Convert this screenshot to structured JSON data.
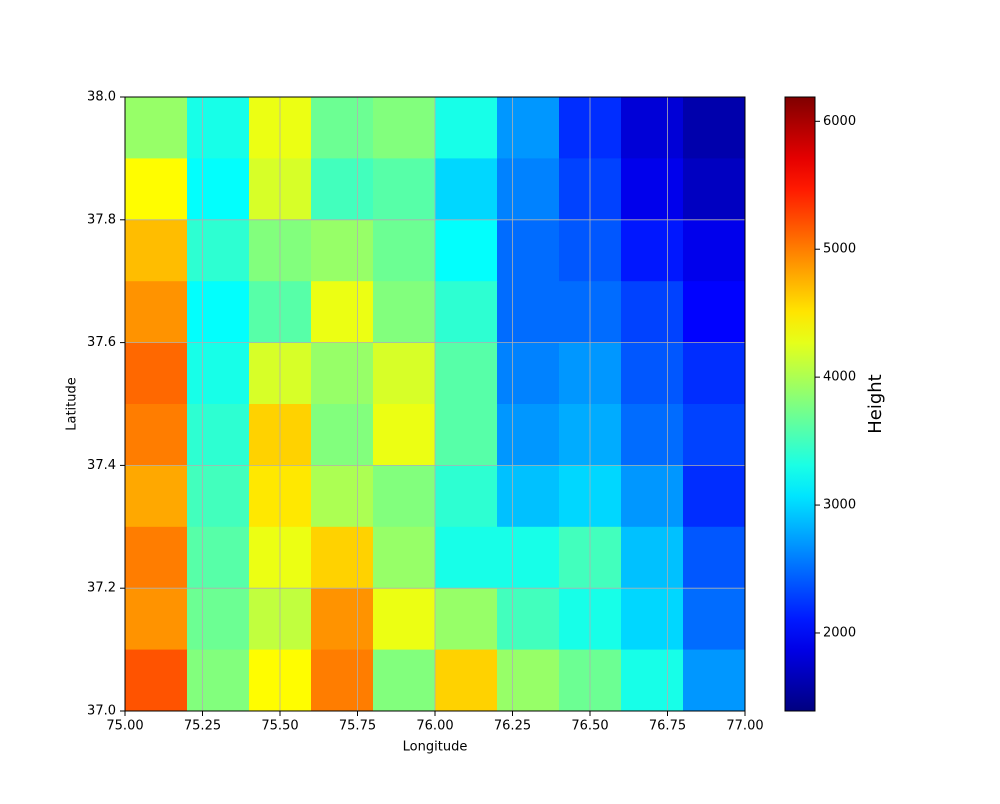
{
  "chart_data": {
    "type": "heatmap",
    "x_label": "Longitude",
    "y_label": "Latitude",
    "colorbar_label": "Height",
    "xlim": [
      75,
      77
    ],
    "ylim": [
      37,
      38
    ],
    "xticks": [
      {
        "value": 75,
        "label": "75.00"
      },
      75.25,
      {
        "value": 75.5,
        "label": "75.50"
      },
      75.75,
      {
        "value": 76,
        "label": "76.00"
      },
      76.25,
      {
        "value": 76.5,
        "label": "76.50"
      },
      76.75,
      {
        "value": 77,
        "label": "77.00"
      }
    ],
    "yticks": [
      {
        "value": 37,
        "label": "37.0"
      },
      37.2,
      37.4,
      37.6,
      37.8,
      {
        "value": 38,
        "label": "38.0"
      }
    ],
    "grid": true,
    "colormap": "jet",
    "clim": [
      1390,
      6190
    ],
    "colorbar_ticks": [
      2000,
      3000,
      4000,
      5000,
      6000
    ],
    "z": [
      [
        3900,
        3300,
        4300,
        3700,
        3800,
        3300,
        2700,
        2200,
        1800,
        1600
      ],
      [
        4400,
        3200,
        4200,
        3500,
        3600,
        3000,
        2600,
        2300,
        1900,
        1700
      ],
      [
        4700,
        3400,
        3800,
        3900,
        3700,
        3200,
        2500,
        2400,
        2100,
        1900
      ],
      [
        4900,
        3200,
        3600,
        4300,
        3800,
        3400,
        2500,
        2500,
        2300,
        2000
      ],
      [
        5100,
        3300,
        4200,
        3900,
        4200,
        3600,
        2600,
        2700,
        2400,
        2200
      ],
      [
        5000,
        3400,
        4600,
        3800,
        4300,
        3600,
        2700,
        2800,
        2500,
        2300
      ],
      [
        4800,
        3500,
        4500,
        4000,
        3800,
        3400,
        2900,
        3000,
        2700,
        2200
      ],
      [
        5000,
        3600,
        4300,
        4600,
        3900,
        3300,
        3300,
        3500,
        2900,
        2400
      ],
      [
        4900,
        3700,
        4100,
        4900,
        4300,
        3900,
        3500,
        3300,
        3000,
        2500
      ],
      [
        5200,
        3800,
        4400,
        5000,
        3800,
        4600,
        3900,
        3700,
        3300,
        2700
      ]
    ]
  }
}
